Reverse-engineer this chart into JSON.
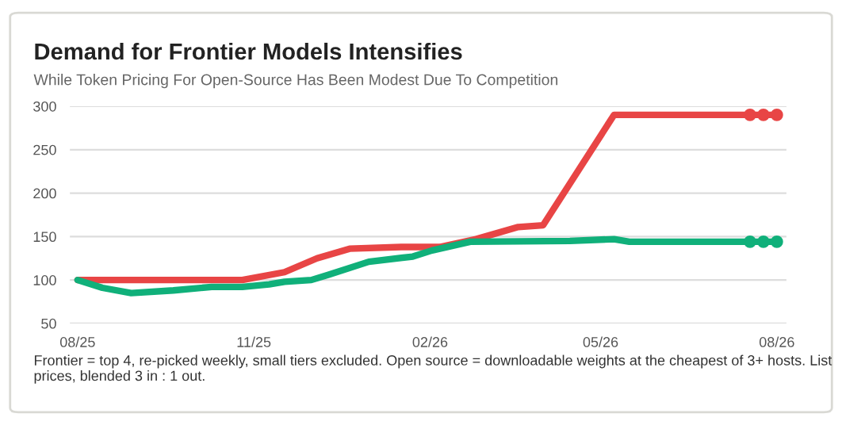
{
  "chart_data": {
    "type": "line",
    "title": "Demand for Frontier Models Intensifies",
    "subtitle": "While Token Pricing For Open-Source Has Been Modest Due To Competition",
    "annotations": [
      "Frontier = top 4, re-picked weekly, small tiers excluded. Open source = downloadable weights at the cheapest of 3+ hosts. List prices, blended 3 in : 1 out."
    ],
    "series": [
      {
        "color": "#e84545",
        "x": [
          "2025-08-01",
          "2025-10-26",
          "2025-11-17",
          "2025-12-04",
          "2025-12-21",
          "2026-01-17",
          "2026-02-06",
          "2026-02-25",
          "2026-03-19",
          "2026-04-01",
          "2026-05-08",
          "2026-08-01"
        ],
        "values": [
          100,
          100,
          109,
          125,
          136,
          138,
          138,
          147,
          161,
          163,
          290,
          290
        ]
      },
      {
        "color": "#10b07a",
        "x": [
          "2025-08-01",
          "2025-08-14",
          "2025-08-29",
          "2025-09-20",
          "2025-10-10",
          "2025-10-26",
          "2025-11-09",
          "2025-11-17",
          "2025-12-01",
          "2025-12-10",
          "2025-12-31",
          "2026-01-23",
          "2026-02-02",
          "2026-02-22",
          "2026-04-15",
          "2026-05-08",
          "2026-05-16",
          "2026-08-01"
        ],
        "values": [
          100,
          91,
          85,
          88,
          92,
          92,
          95,
          98,
          100,
          106,
          121,
          127,
          134,
          144,
          145,
          147,
          144,
          144
        ]
      },
      {
        "type": "scatter",
        "marker": "circle",
        "color": "#e84545",
        "x": [
          "2026-07-18",
          "2026-07-25",
          "2026-08-01"
        ],
        "values": [
          290,
          290,
          290
        ]
      },
      {
        "type": "scatter",
        "marker": "circle",
        "color": "#10b07a",
        "x": [
          "2026-07-18",
          "2026-07-25",
          "2026-08-01"
        ],
        "values": [
          144,
          144,
          144
        ]
      }
    ],
    "xlim": [
      "2025-07-28",
      "2026-08-06"
    ],
    "xticks": [
      {
        "value": "2025-08-01",
        "label": "08/25"
      },
      {
        "value": "2025-11-01",
        "label": "11/25"
      },
      {
        "value": "2026-02-01",
        "label": "02/26"
      },
      {
        "value": "2026-05-01",
        "label": "05/26"
      },
      {
        "value": "2026-08-01",
        "label": "08/26"
      }
    ],
    "ylim": [
      50,
      300
    ],
    "yticks": [
      50,
      100,
      150,
      200,
      250,
      300
    ],
    "grid": "y",
    "legend": false
  }
}
